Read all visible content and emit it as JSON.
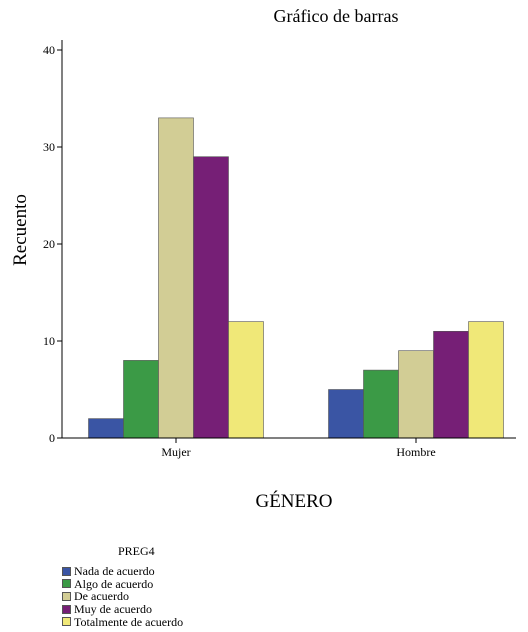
{
  "chart_data": {
    "type": "bar",
    "title": "Gráfico de barras",
    "xlabel": "GÉNERO",
    "ylabel": "Recuento",
    "categories": [
      "Mujer",
      "Hombre"
    ],
    "ylim": [
      0,
      40
    ],
    "yticks": [
      "0",
      "10",
      "20",
      "30",
      "40"
    ],
    "grid": false,
    "legend_position": "bottom-left",
    "legend_title": "PREG4",
    "series": [
      {
        "name": "Nada de acuerdo",
        "color": "#3a55a4",
        "values": [
          2,
          5
        ]
      },
      {
        "name": "Algo de acuerdo",
        "color": "#3b9a46",
        "values": [
          8,
          7
        ]
      },
      {
        "name": "De acuerdo",
        "color": "#d2cd95",
        "values": [
          33,
          9
        ]
      },
      {
        "name": "Muy de acuerdo",
        "color": "#761f76",
        "values": [
          29,
          11
        ]
      },
      {
        "name": "Totalmente de acuerdo",
        "color": "#f0e878",
        "values": [
          12,
          12
        ]
      }
    ]
  }
}
